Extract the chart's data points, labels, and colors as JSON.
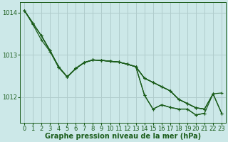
{
  "xlabel": "Graphe pression niveau de la mer (hPa)",
  "xlim": [
    -0.5,
    23.5
  ],
  "ylim": [
    1011.4,
    1014.25
  ],
  "yticks": [
    1012,
    1013,
    1014
  ],
  "xticks": [
    0,
    1,
    2,
    3,
    4,
    5,
    6,
    7,
    8,
    9,
    10,
    11,
    12,
    13,
    14,
    15,
    16,
    17,
    18,
    19,
    20,
    21,
    22,
    23
  ],
  "bg_color": "#cce8e8",
  "grid_color": "#b0cccc",
  "line_color": "#1a5c1a",
  "series": [
    [
      1014.05,
      1013.75,
      null,
      null,
      null,
      null,
      null,
      null,
      null,
      null,
      null,
      null,
      null,
      null,
      null,
      null,
      null,
      null,
      null,
      null,
      null,
      null,
      null,
      null
    ],
    [
      null,
      null,
      1013.45,
      1013.1,
      1012.72,
      1012.48,
      null,
      null,
      null,
      null,
      null,
      null,
      null,
      null,
      null,
      null,
      null,
      null,
      null,
      null,
      null,
      null,
      null,
      null
    ],
    [
      null,
      null,
      null,
      null,
      null,
      1012.48,
      1012.68,
      1012.82,
      1012.88,
      1012.87,
      1012.85,
      1012.83,
      1012.78,
      1012.72,
      1012.05,
      1011.72,
      1011.82,
      1011.76,
      1011.72,
      1011.72,
      1011.58,
      1011.62,
      null,
      null
    ],
    [
      null,
      null,
      null,
      null,
      null,
      1012.48,
      1012.68,
      1012.82,
      1012.88,
      1012.87,
      1012.85,
      1012.83,
      1012.78,
      1012.72,
      1012.45,
      1012.35,
      1012.25,
      1012.15,
      1011.95,
      1011.85,
      1011.75,
      1011.72,
      null,
      null
    ],
    [
      1014.05,
      1013.75,
      1013.45,
      1013.1,
      1012.72,
      1012.48,
      1012.68,
      1012.82,
      1012.88,
      1012.87,
      1012.85,
      1012.83,
      1012.78,
      1012.72,
      1012.05,
      1011.72,
      1011.82,
      1011.76,
      1011.72,
      1011.72,
      1011.58,
      1011.62,
      1012.08,
      1011.62
    ],
    [
      1014.05,
      1013.75,
      1013.45,
      1013.1,
      1012.72,
      1012.48,
      1012.68,
      1012.82,
      1012.88,
      1012.87,
      1012.85,
      1012.83,
      1012.78,
      1012.72,
      1012.45,
      1012.35,
      1012.25,
      1012.15,
      1011.95,
      1011.85,
      1011.75,
      1011.72,
      1012.08,
      1011.62
    ],
    [
      1014.05,
      1013.72,
      1013.35,
      1013.08,
      1012.7,
      1012.48,
      1012.68,
      1012.82,
      1012.88,
      1012.87,
      1012.85,
      1012.83,
      1012.78,
      1012.72,
      1012.45,
      1012.35,
      1012.25,
      1012.15,
      1011.95,
      1011.85,
      1011.75,
      1011.72,
      1012.08,
      1012.1
    ]
  ],
  "linewidth": 0.9,
  "markersize": 3,
  "font_size": 7,
  "tick_font_size": 6
}
